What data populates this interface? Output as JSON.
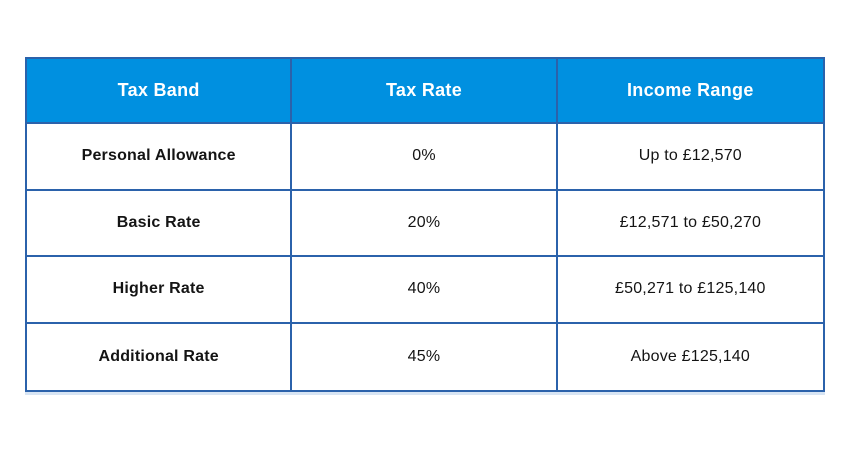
{
  "chart_data": {
    "type": "table",
    "title": "",
    "columns": [
      "Tax Band",
      "Tax Rate",
      "Income Range"
    ],
    "rows": [
      {
        "band": "Personal Allowance",
        "rate": "0%",
        "range": "Up to £12,570"
      },
      {
        "band": "Basic Rate",
        "rate": "20%",
        "range": "£12,571 to £50,270"
      },
      {
        "band": "Higher Rate",
        "rate": "40%",
        "range": "£50,271 to £125,140"
      },
      {
        "band": "Additional Rate",
        "rate": "45%",
        "range": "Above £125,140"
      }
    ]
  },
  "colors": {
    "header_bg": "#0090E0",
    "border": "#2B62AB",
    "header_text": "#FFFFFF",
    "body_text": "#141414",
    "page_bg": "#FFFFFF"
  }
}
